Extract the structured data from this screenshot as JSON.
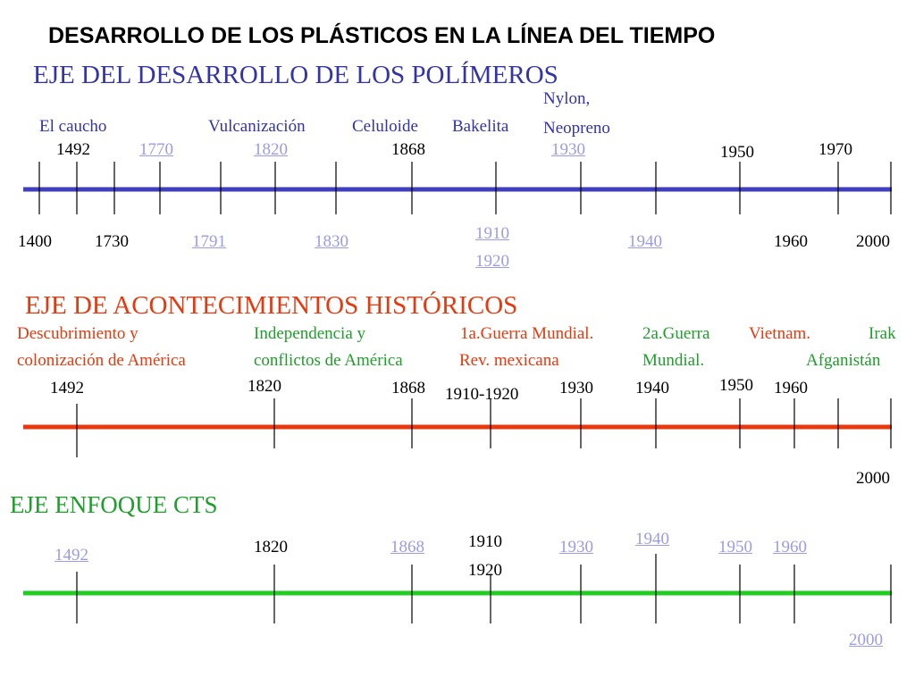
{
  "title": "DESARROLLO DE LOS PLÁSTICOS EN LA LÍNEA DEL TIEMPO",
  "axis1": {
    "heading": "EJE DEL DESARROLLO DE LOS POLÍMEROS",
    "line_color": "#3f3fbf",
    "events": {
      "caucho": "El caucho",
      "vulcanizacion": "Vulcanización",
      "celuloide": "Celuloide",
      "bakelita": "Bakelita",
      "nylon": "Nylon,",
      "neopreno": "Neopreno"
    },
    "years_top": {
      "y1492": "1492",
      "y1770": "1770",
      "y1820": "1820",
      "y1868": "1868",
      "y1930": "1930",
      "y1950": "1950",
      "y1970": "1970"
    },
    "years_bottom": {
      "y1400": "1400",
      "y1730": "1730",
      "y1791": "1791",
      "y1830": "1830",
      "y1910": "1910",
      "y1920": "1920",
      "y1940": "1940",
      "y1960": "1960",
      "y2000": "2000"
    }
  },
  "axis2": {
    "heading": "EJE DE ACONTECIMIENTOS HISTÓRICOS",
    "line_color": "#e8380d",
    "events": {
      "descubrimiento_1": "Descubrimiento y",
      "descubrimiento_2": "colonización de América",
      "independencia_1": "Independencia y",
      "independencia_2": "conflictos de América",
      "guerra1_1": "1a.Guerra Mundial.",
      "guerra1_2": "Rev. mexicana",
      "guerra2_1": "2a.Guerra",
      "guerra2_2": "Mundial.",
      "vietnam": "Vietnam.",
      "irak": "Irak",
      "afganistan": "Afganistán"
    },
    "years": {
      "y1492": "1492",
      "y1820": "1820",
      "y1868": "1868",
      "y1910_1920": "1910-1920",
      "y1930": "1930",
      "y1940": "1940",
      "y1950": "1950",
      "y1960": "1960",
      "y2000": "2000"
    }
  },
  "axis3": {
    "heading": "EJE ENFOQUE CTS",
    "line_color": "#22cc22",
    "years": {
      "y1492": "1492",
      "y1820": "1820",
      "y1868": "1868",
      "y1910": "1910",
      "y1920": "1920",
      "y1930": "1930",
      "y1940": "1940",
      "y1950": "1950",
      "y1960": "1960",
      "y2000": "2000"
    }
  }
}
